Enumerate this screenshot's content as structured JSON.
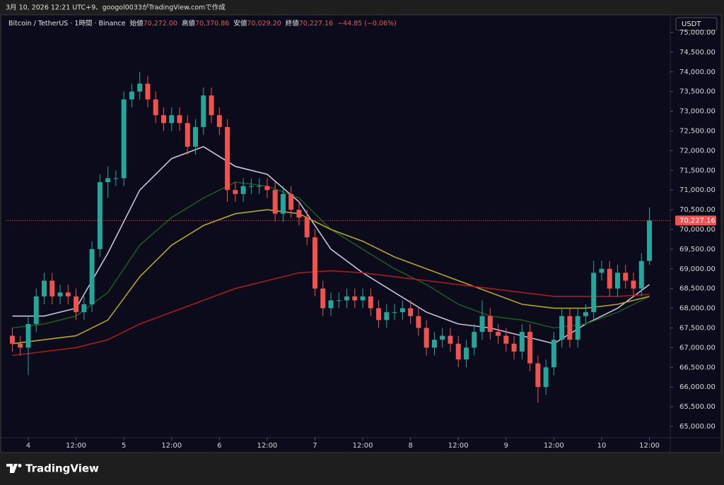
{
  "header": {
    "text": "3月 10, 2026 12:21 UTC+9、googol0033がTradingView.comで作成"
  },
  "footer": {
    "brand": "TradingView"
  },
  "chart_data": {
    "type": "candlestick",
    "symbol": "Bitcoin / TetherUS · 1時間 · Binance",
    "ohlc_legend": [
      {
        "label": "始値",
        "value": "70,272.00"
      },
      {
        "label": "高値",
        "value": "70,370.86"
      },
      {
        "label": "安値",
        "value": "70,029.20"
      },
      {
        "label": "終値",
        "value": "70,227.16"
      }
    ],
    "change": "−44.85 (−0.06%)",
    "currency": "USDT",
    "up_color": "#26a69a",
    "down_color": "#ef5350",
    "x": [
      -4,
      -2,
      0,
      2,
      4,
      6,
      8,
      10,
      12,
      14,
      16,
      18,
      20,
      22,
      24,
      26,
      28,
      30,
      32,
      34,
      36,
      38,
      40,
      42,
      44,
      46,
      48,
      50,
      52,
      54,
      56,
      58,
      60,
      62,
      64,
      66,
      68,
      70,
      72,
      74,
      76,
      78,
      80,
      82,
      84,
      86,
      88,
      90,
      92,
      94,
      96,
      98,
      100,
      102,
      104,
      106,
      108,
      110,
      112,
      114,
      116,
      118,
      120,
      122,
      124,
      126,
      128,
      130,
      132,
      134,
      136,
      138,
      140,
      142,
      144,
      146,
      148,
      150,
      152,
      154,
      156
    ],
    "open": [
      67300,
      67100,
      67000,
      67600,
      68300,
      68700,
      68300,
      68400,
      68300,
      67900,
      68100,
      69500,
      71200,
      71300,
      71300,
      73300,
      73500,
      73700,
      73300,
      72900,
      72700,
      72900,
      72700,
      72100,
      72600,
      73400,
      72900,
      72600,
      71000,
      70900,
      71100,
      71100,
      71100,
      71000,
      70400,
      70900,
      70500,
      70300,
      69800,
      68500,
      68000,
      68200,
      68200,
      68300,
      68200,
      68300,
      68000,
      67700,
      67900,
      67900,
      68000,
      67800,
      67500,
      67000,
      67200,
      67300,
      67100,
      66700,
      67000,
      67400,
      67800,
      67400,
      67300,
      67100,
      66900,
      67400,
      66600,
      66000,
      66500,
      67200,
      67800,
      67200,
      67800,
      67900,
      68900,
      69000,
      68500,
      68900,
      68700,
      68500,
      69200
    ],
    "high": [
      67500,
      67300,
      67800,
      68500,
      68900,
      68900,
      68600,
      68600,
      68500,
      68300,
      69700,
      71400,
      71600,
      71500,
      73500,
      73700,
      74000,
      73900,
      73500,
      73100,
      73100,
      73100,
      72900,
      72800,
      73600,
      73600,
      73100,
      72800,
      71200,
      71300,
      71300,
      71300,
      71300,
      71200,
      71100,
      71100,
      70700,
      70500,
      70000,
      68700,
      68400,
      68400,
      68500,
      68500,
      68500,
      68500,
      68200,
      68100,
      68100,
      68200,
      68200,
      68000,
      67700,
      67400,
      67500,
      67500,
      67300,
      67200,
      67600,
      68200,
      68000,
      67600,
      67500,
      67300,
      67600,
      67600,
      66800,
      66700,
      67400,
      68000,
      68000,
      68000,
      68100,
      69200,
      69200,
      69200,
      69100,
      69100,
      68900,
      69400,
      70560
    ],
    "low": [
      66900,
      66800,
      66300,
      67400,
      68100,
      68100,
      68100,
      68100,
      67700,
      67700,
      67900,
      69300,
      70800,
      71100,
      71100,
      73100,
      73300,
      73100,
      72700,
      72500,
      72500,
      72500,
      71900,
      71900,
      72400,
      72700,
      72400,
      70700,
      70700,
      70700,
      70900,
      70900,
      70800,
      70200,
      70200,
      70300,
      70100,
      69600,
      68300,
      67800,
      67800,
      68000,
      68000,
      68000,
      68000,
      67800,
      67500,
      67500,
      67700,
      67700,
      67600,
      67300,
      66800,
      66800,
      67000,
      66900,
      66500,
      66500,
      66800,
      67200,
      67200,
      67100,
      66900,
      66700,
      66700,
      66400,
      65600,
      65800,
      66300,
      67000,
      67000,
      67000,
      67600,
      67700,
      68700,
      68300,
      68300,
      68500,
      68300,
      68300,
      69100
    ],
    "close": [
      67100,
      67000,
      67600,
      68300,
      68700,
      68300,
      68400,
      68300,
      67900,
      68100,
      69500,
      71200,
      71300,
      71300,
      73300,
      73500,
      73700,
      73300,
      72900,
      72700,
      72900,
      72700,
      72100,
      72600,
      73400,
      72900,
      72600,
      71000,
      70900,
      71100,
      71100,
      71100,
      71000,
      70400,
      70900,
      70500,
      70300,
      69800,
      68500,
      68000,
      68200,
      68200,
      68300,
      68200,
      68300,
      68000,
      67700,
      67900,
      67900,
      68000,
      67800,
      67500,
      67000,
      67200,
      67300,
      67100,
      66700,
      67000,
      67400,
      67800,
      67400,
      67300,
      67100,
      66900,
      67400,
      66600,
      66000,
      66500,
      67200,
      67800,
      67200,
      67800,
      67900,
      68900,
      69000,
      68500,
      68900,
      68700,
      68500,
      69200,
      70227.16
    ],
    "series": [
      {
        "color": "#c9c4dc",
        "x": [
          -4,
          4,
          12,
          20,
          28,
          36,
          44,
          52,
          60,
          68,
          76,
          84,
          92,
          100,
          108,
          116,
          124,
          132,
          140,
          148,
          156
        ],
        "values": [
          67800,
          67800,
          68000,
          69400,
          71000,
          71800,
          72100,
          71600,
          71400,
          70700,
          69500,
          68900,
          68400,
          67900,
          67600,
          67500,
          67300,
          67100,
          67600,
          68000,
          68600
        ]
      },
      {
        "color": "#1d5a1d",
        "x": [
          -4,
          4,
          12,
          20,
          28,
          36,
          44,
          52,
          60,
          68,
          76,
          84,
          92,
          100,
          108,
          116,
          124,
          132,
          140,
          148,
          156
        ],
        "values": [
          67500,
          67600,
          67800,
          68400,
          69600,
          70300,
          70800,
          71200,
          71100,
          70800,
          70000,
          69500,
          69000,
          68600,
          68100,
          67800,
          67700,
          67500,
          67600,
          67900,
          68300
        ]
      },
      {
        "color": "#b5a52a",
        "x": [
          -4,
          4,
          12,
          20,
          28,
          36,
          44,
          52,
          60,
          68,
          76,
          84,
          92,
          100,
          108,
          116,
          124,
          132,
          140,
          148,
          156
        ],
        "values": [
          67100,
          67200,
          67300,
          67700,
          68800,
          69600,
          70100,
          70400,
          70500,
          70400,
          70000,
          69700,
          69300,
          69000,
          68700,
          68400,
          68100,
          68000,
          68000,
          68100,
          68300
        ]
      },
      {
        "color": "#a81c1c",
        "x": [
          -4,
          4,
          12,
          20,
          28,
          36,
          44,
          52,
          60,
          68,
          76,
          84,
          92,
          100,
          108,
          116,
          124,
          132,
          140,
          148,
          156
        ],
        "values": [
          66800,
          66900,
          67000,
          67200,
          67600,
          67900,
          68200,
          68500,
          68700,
          68900,
          68950,
          68900,
          68800,
          68700,
          68600,
          68500,
          68400,
          68300,
          68300,
          68300,
          68350
        ]
      }
    ],
    "last_price": {
      "value": 70227.16,
      "label": "70,227.16"
    },
    "xlim": [
      -5.68,
      160.7
    ],
    "xticks": [
      {
        "value": 0,
        "label": "4"
      },
      {
        "value": 12,
        "label": "12:00"
      },
      {
        "value": 24,
        "label": "5"
      },
      {
        "value": 36,
        "label": "12:00"
      },
      {
        "value": 48,
        "label": "6"
      },
      {
        "value": 60,
        "label": "12:00"
      },
      {
        "value": 72,
        "label": "7"
      },
      {
        "value": 84,
        "label": "12:00"
      },
      {
        "value": 96,
        "label": "8"
      },
      {
        "value": 108,
        "label": "12:00"
      },
      {
        "value": 120,
        "label": "9"
      },
      {
        "value": 132,
        "label": "12:00"
      },
      {
        "value": 144,
        "label": "10"
      },
      {
        "value": 156,
        "label": "12:00"
      }
    ],
    "ylim": [
      64713,
      75430
    ],
    "yticks": [
      {
        "value": 65000,
        "label": "65,000.00"
      },
      {
        "value": 65500,
        "label": "65,500.00"
      },
      {
        "value": 66000,
        "label": "66,000.00"
      },
      {
        "value": 66500,
        "label": "66,500.00"
      },
      {
        "value": 67000,
        "label": "67,000.00"
      },
      {
        "value": 67500,
        "label": "67,500.00"
      },
      {
        "value": 68000,
        "label": "68,000.00"
      },
      {
        "value": 68500,
        "label": "68,500.00"
      },
      {
        "value": 69000,
        "label": "69,000.00"
      },
      {
        "value": 69500,
        "label": "69,500.00"
      },
      {
        "value": 70000,
        "label": "70,000.00"
      },
      {
        "value": 70500,
        "label": "70,500.00"
      },
      {
        "value": 71000,
        "label": "71,000.00"
      },
      {
        "value": 71500,
        "label": "71,500.00"
      },
      {
        "value": 72000,
        "label": "72,000.00"
      },
      {
        "value": 72500,
        "label": "72,500.00"
      },
      {
        "value": 73000,
        "label": "73,000.00"
      },
      {
        "value": 73500,
        "label": "73,500.00"
      },
      {
        "value": 74000,
        "label": "74,000.00"
      },
      {
        "value": 74500,
        "label": "74,500.00"
      },
      {
        "value": 75000,
        "label": "75,000.00"
      }
    ]
  }
}
